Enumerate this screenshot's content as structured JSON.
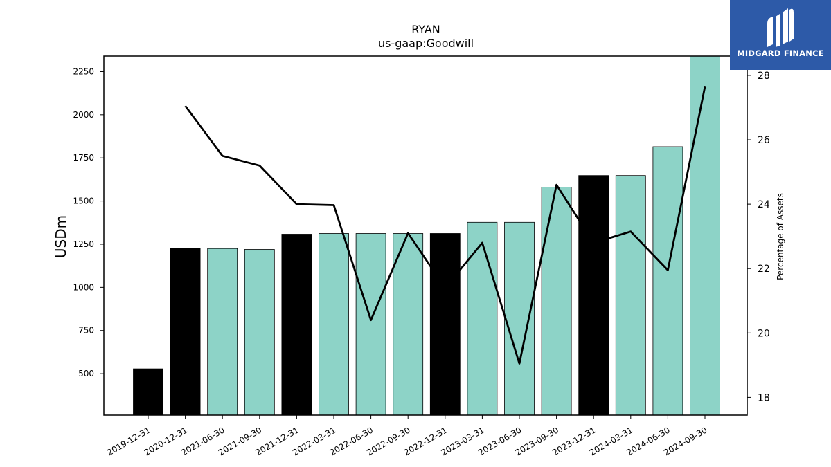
{
  "chart_data": {
    "type": "bar",
    "title": "RYAN",
    "subtitle": "us-gaap:Goodwill",
    "ylabel": "USDm",
    "ylabel_right": "Percentage of Assets",
    "categories": [
      "2019-12-31",
      "2020-12-31",
      "2021-06-30",
      "2021-09-30",
      "2021-12-31",
      "2022-03-31",
      "2022-06-30",
      "2022-09-30",
      "2022-12-31",
      "2023-03-31",
      "2023-06-30",
      "2023-09-30",
      "2023-12-31",
      "2024-03-31",
      "2024-06-30",
      "2024-09-30"
    ],
    "series": [
      {
        "type": "bar",
        "axis": "left",
        "values": [
          528,
          1225,
          1225,
          1220,
          1308,
          1312,
          1312,
          1312,
          1312,
          1377,
          1377,
          1580,
          1648,
          1648,
          1815,
          2345
        ]
      },
      {
        "type": "line",
        "axis": "right",
        "values": [
          null,
          27.05,
          25.5,
          25.2,
          24.0,
          23.97,
          20.4,
          23.1,
          21.4,
          22.8,
          19.05,
          24.6,
          22.8,
          23.15,
          21.95,
          27.65
        ]
      }
    ],
    "bar_colors": [
      "#000000",
      "#000000",
      "#8dd3c7",
      "#8dd3c7",
      "#000000",
      "#8dd3c7",
      "#8dd3c7",
      "#8dd3c7",
      "#000000",
      "#8dd3c7",
      "#8dd3c7",
      "#8dd3c7",
      "#000000",
      "#8dd3c7",
      "#8dd3c7",
      "#8dd3c7"
    ],
    "ylim": [
      260,
      2340
    ],
    "yticks": [
      500,
      750,
      1000,
      1250,
      1500,
      1750,
      2000,
      2250
    ],
    "ylim_right": [
      17.45,
      28.6
    ],
    "yticks_right": [
      18,
      20,
      22,
      24,
      26,
      28
    ],
    "grid": false,
    "line_color": "#000000"
  },
  "logo": {
    "text": "MIDGARD FINANCE",
    "background": "#2d5aa8"
  }
}
